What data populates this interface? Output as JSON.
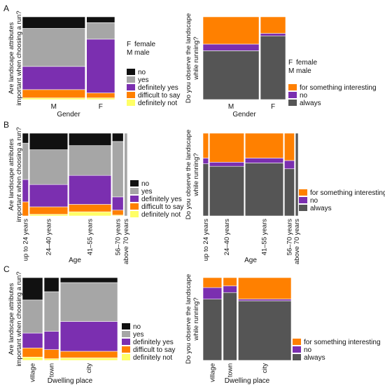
{
  "chart_data": [
    {
      "type": "mosaic",
      "panel": "A",
      "xlabel": "Gender",
      "ylabel": [
        "Are landscape attributes",
        "important when choosing a run?"
      ],
      "categories": [
        "M",
        "F"
      ],
      "column_widths": [
        0.69,
        0.31
      ],
      "series": [
        {
          "name": "definitely not",
          "color": "#ffff66",
          "values": [
            0.02,
            0.02
          ]
        },
        {
          "name": "difficult to say",
          "color": "#ff8000",
          "values": [
            0.1,
            0.06
          ]
        },
        {
          "name": "definitely yes",
          "color": "#7b2fb0",
          "values": [
            0.28,
            0.65
          ]
        },
        {
          "name": "yes",
          "color": "#a6a6a6",
          "values": [
            0.46,
            0.2
          ]
        },
        {
          "name": "no",
          "color": "#111111",
          "values": [
            0.14,
            0.07
          ]
        }
      ],
      "abbrev_legend": [
        {
          "key": "F",
          "label": "female"
        },
        {
          "key": "M",
          "label": "male"
        }
      ]
    },
    {
      "type": "mosaic",
      "panel": "",
      "xlabel": "Gender",
      "ylabel": [
        "Do you observe the landscape",
        "while running?"
      ],
      "categories": [
        "M",
        "F"
      ],
      "column_widths": [
        0.69,
        0.31
      ],
      "series": [
        {
          "name": "always",
          "color": "#555555",
          "values": [
            0.59,
            0.77
          ]
        },
        {
          "name": "no",
          "color": "#7b2fb0",
          "values": [
            0.08,
            0.03
          ]
        },
        {
          "name": "for something interesting",
          "color": "#ff8000",
          "values": [
            0.33,
            0.2
          ]
        }
      ],
      "abbrev_legend": [
        {
          "key": "F",
          "label": "female"
        },
        {
          "key": "M",
          "label": "male"
        }
      ]
    },
    {
      "type": "mosaic",
      "panel": "B",
      "xlabel": "Age",
      "ylabel": [
        "Are landscape attributes",
        "important when choosing a run?"
      ],
      "categories": [
        "up to 24 years",
        "24–40 years",
        "41–55 years",
        "56–70 years",
        "above 70 years"
      ],
      "column_widths": [
        0.06,
        0.38,
        0.42,
        0.11,
        0.03
      ],
      "series": [
        {
          "name": "definitely not",
          "color": "#ffff66",
          "values": [
            0.0,
            0.02,
            0.05,
            0.01,
            0.0
          ]
        },
        {
          "name": "difficult to say",
          "color": "#ff8000",
          "values": [
            0.17,
            0.09,
            0.09,
            0.06,
            0.0
          ]
        },
        {
          "name": "definitely yes",
          "color": "#7b2fb0",
          "values": [
            0.27,
            0.27,
            0.35,
            0.16,
            0.0
          ]
        },
        {
          "name": "yes",
          "color": "#a6a6a6",
          "values": [
            0.44,
            0.42,
            0.36,
            0.67,
            1.0
          ]
        },
        {
          "name": "no",
          "color": "#111111",
          "values": [
            0.12,
            0.2,
            0.15,
            0.1,
            0.0
          ]
        }
      ]
    },
    {
      "type": "mosaic",
      "panel": "",
      "xlabel": "Age",
      "ylabel": [
        "Do you observe the landscape",
        "while running?"
      ],
      "categories": [
        "up to 24 years",
        "24–40 years",
        "41–55 years",
        "56–70 years",
        "above 70 years"
      ],
      "column_widths": [
        0.06,
        0.38,
        0.42,
        0.11,
        0.03
      ],
      "series": [
        {
          "name": "always",
          "color": "#555555",
          "values": [
            0.63,
            0.6,
            0.64,
            0.57,
            1.0
          ]
        },
        {
          "name": "no",
          "color": "#7b2fb0",
          "values": [
            0.07,
            0.05,
            0.06,
            0.1,
            0.0
          ]
        },
        {
          "name": "for something interesting",
          "color": "#ff8000",
          "values": [
            0.3,
            0.35,
            0.3,
            0.33,
            0.0
          ]
        }
      ]
    },
    {
      "type": "mosaic",
      "panel": "C",
      "xlabel": "Dwelling place",
      "ylabel": [
        "Are landscape attributes",
        "important when choosing a run?"
      ],
      "categories": [
        "village",
        "town",
        "city"
      ],
      "column_widths": [
        0.22,
        0.16,
        0.62
      ],
      "series": [
        {
          "name": "definitely not",
          "color": "#ffff66",
          "values": [
            0.04,
            0.02,
            0.03
          ]
        },
        {
          "name": "difficult to say",
          "color": "#ff8000",
          "values": [
            0.11,
            0.11,
            0.08
          ]
        },
        {
          "name": "definitely yes",
          "color": "#7b2fb0",
          "values": [
            0.18,
            0.22,
            0.36
          ]
        },
        {
          "name": "yes",
          "color": "#a6a6a6",
          "values": [
            0.4,
            0.48,
            0.47
          ]
        },
        {
          "name": "no",
          "color": "#111111",
          "values": [
            0.27,
            0.17,
            0.06
          ]
        }
      ]
    },
    {
      "type": "mosaic",
      "panel": "",
      "xlabel": "Dwelling place",
      "ylabel": [
        "Do you observe the landscape",
        "while running?"
      ],
      "categories": [
        "village",
        "town",
        "city"
      ],
      "column_widths": [
        0.22,
        0.16,
        0.62
      ],
      "series": [
        {
          "name": "always",
          "color": "#555555",
          "values": [
            0.74,
            0.82,
            0.72
          ]
        },
        {
          "name": "no",
          "color": "#7b2fb0",
          "values": [
            0.14,
            0.08,
            0.02
          ]
        },
        {
          "name": "for something interesting",
          "color": "#ff8000",
          "values": [
            0.12,
            0.1,
            0.26
          ]
        }
      ]
    }
  ]
}
